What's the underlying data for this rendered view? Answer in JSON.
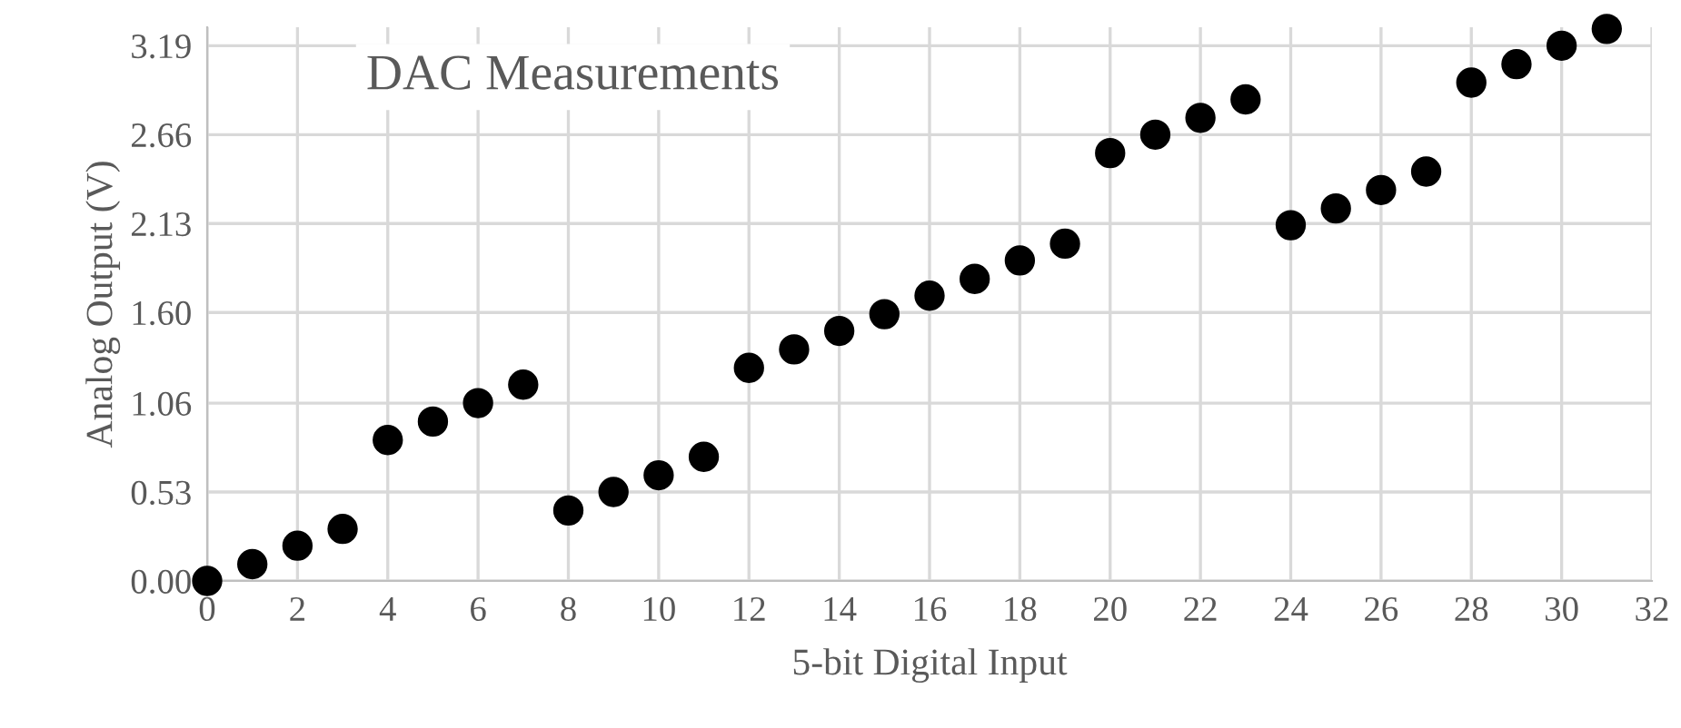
{
  "chart_data": {
    "type": "scatter",
    "title": "DAC Measurements",
    "xlabel": "5-bit Digital Input",
    "ylabel": "Analog Output (V)",
    "x": [
      0,
      1,
      2,
      3,
      4,
      5,
      6,
      7,
      8,
      9,
      10,
      11,
      12,
      13,
      14,
      15,
      16,
      17,
      18,
      19,
      20,
      21,
      22,
      23,
      24,
      25,
      26,
      27,
      28,
      29,
      30,
      31
    ],
    "series": [
      {
        "color": "#000000",
        "values": [
          0,
          0.1,
          0.21,
          0.31,
          0.84,
          0.95,
          1.06,
          1.17,
          0.42,
          0.53,
          0.63,
          0.74,
          1.27,
          1.38,
          1.49,
          1.59,
          1.7,
          1.8,
          1.91,
          2.01,
          2.55,
          2.66,
          2.76,
          2.87,
          2.12,
          2.22,
          2.33,
          2.44,
          2.97,
          3.08,
          3.19,
          3.29
        ]
      }
    ],
    "xlim": [
      0,
      32
    ],
    "xticks": [
      0,
      2,
      4,
      6,
      8,
      10,
      12,
      14,
      16,
      18,
      20,
      22,
      24,
      26,
      28,
      30,
      32
    ],
    "ylim": [
      0,
      3.3
    ],
    "yticks": [
      {
        "value": 0,
        "label": "0.00"
      },
      0.53,
      {
        "value": 1.06,
        "label": "1.06"
      },
      {
        "value": 1.6,
        "label": "1.60"
      },
      2.13,
      2.66,
      3.19
    ],
    "grid": true,
    "marker": "circle",
    "legend": false
  }
}
